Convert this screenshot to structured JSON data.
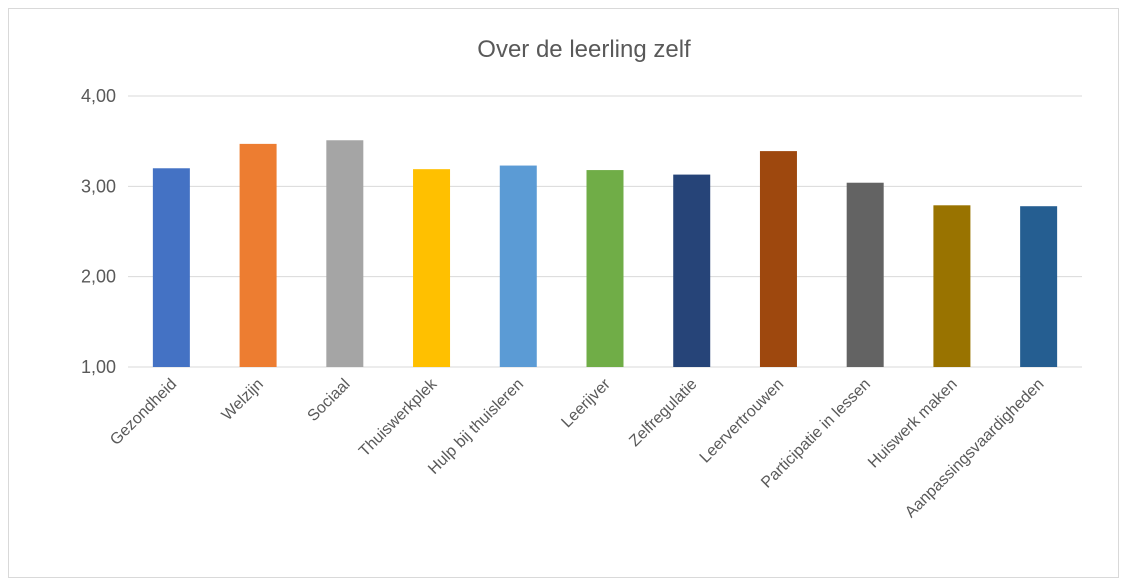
{
  "chart_data": {
    "type": "bar",
    "title": "Over de leerling zelf",
    "xlabel": "",
    "ylabel": "",
    "ylim": [
      1,
      4
    ],
    "yticks": [
      1,
      2,
      3,
      4
    ],
    "ytick_labels": [
      "1,00",
      "2,00",
      "3,00",
      "4,00"
    ],
    "grid": true,
    "legend": "none",
    "categories": [
      "Gezondheid",
      "Welzijn",
      "Sociaal",
      "Thuiswerkplek",
      "Hulp bij thuisleren",
      "Leerijver",
      "Zelfregulatie",
      "Leervertrouwen",
      "Participatie in lessen",
      "Huiswerk maken",
      "Aanpassingsvaardigheden"
    ],
    "values": [
      3.2,
      3.47,
      3.51,
      3.19,
      3.23,
      3.18,
      3.13,
      3.39,
      3.04,
      2.79,
      2.78
    ],
    "colors": [
      "#4472c4",
      "#ed7d31",
      "#a5a5a5",
      "#ffc000",
      "#5b9bd5",
      "#70ad47",
      "#264478",
      "#9e480e",
      "#636363",
      "#997300",
      "#255e91"
    ]
  }
}
